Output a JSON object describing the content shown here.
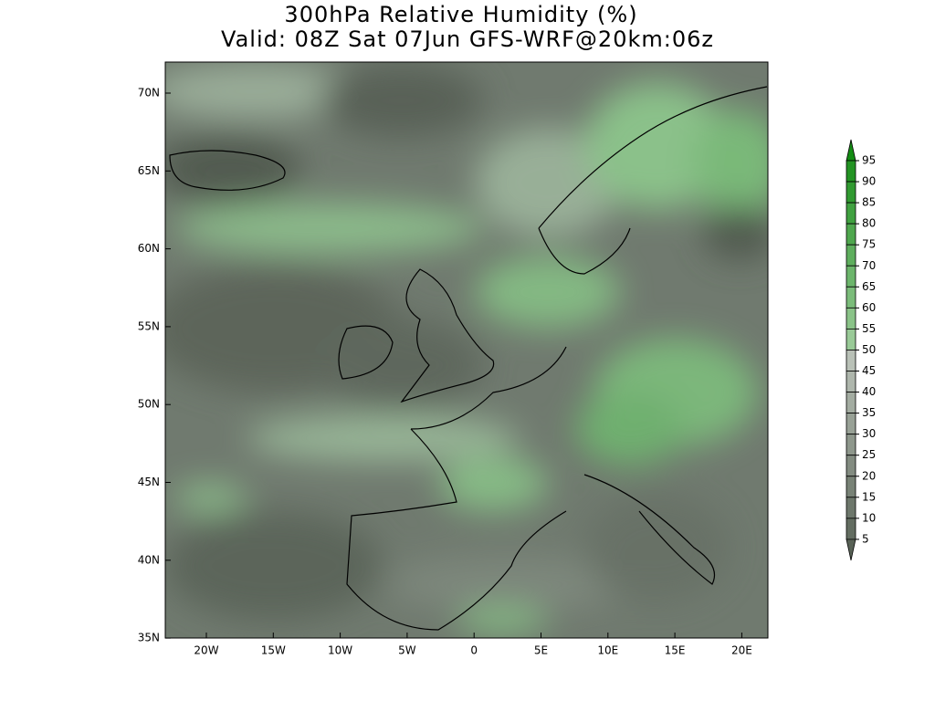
{
  "title": [
    "300hPa Relative Humidity (%)",
    "Valid: 08Z Sat 07Jun GFS-WRF@20km:06z"
  ],
  "lat_labels": [
    "70N",
    "65N",
    "60N",
    "55N",
    "50N",
    "45N",
    "40N",
    "35N"
  ],
  "lon_labels": [
    "20W",
    "15W",
    "10W",
    "5W",
    "0",
    "5E",
    "10E",
    "15E",
    "20E"
  ],
  "colorbar": {
    "levels": [
      95,
      90,
      85,
      80,
      75,
      70,
      65,
      60,
      55,
      50,
      45,
      40,
      35,
      30,
      25,
      20,
      15,
      10,
      5
    ]
  }
}
